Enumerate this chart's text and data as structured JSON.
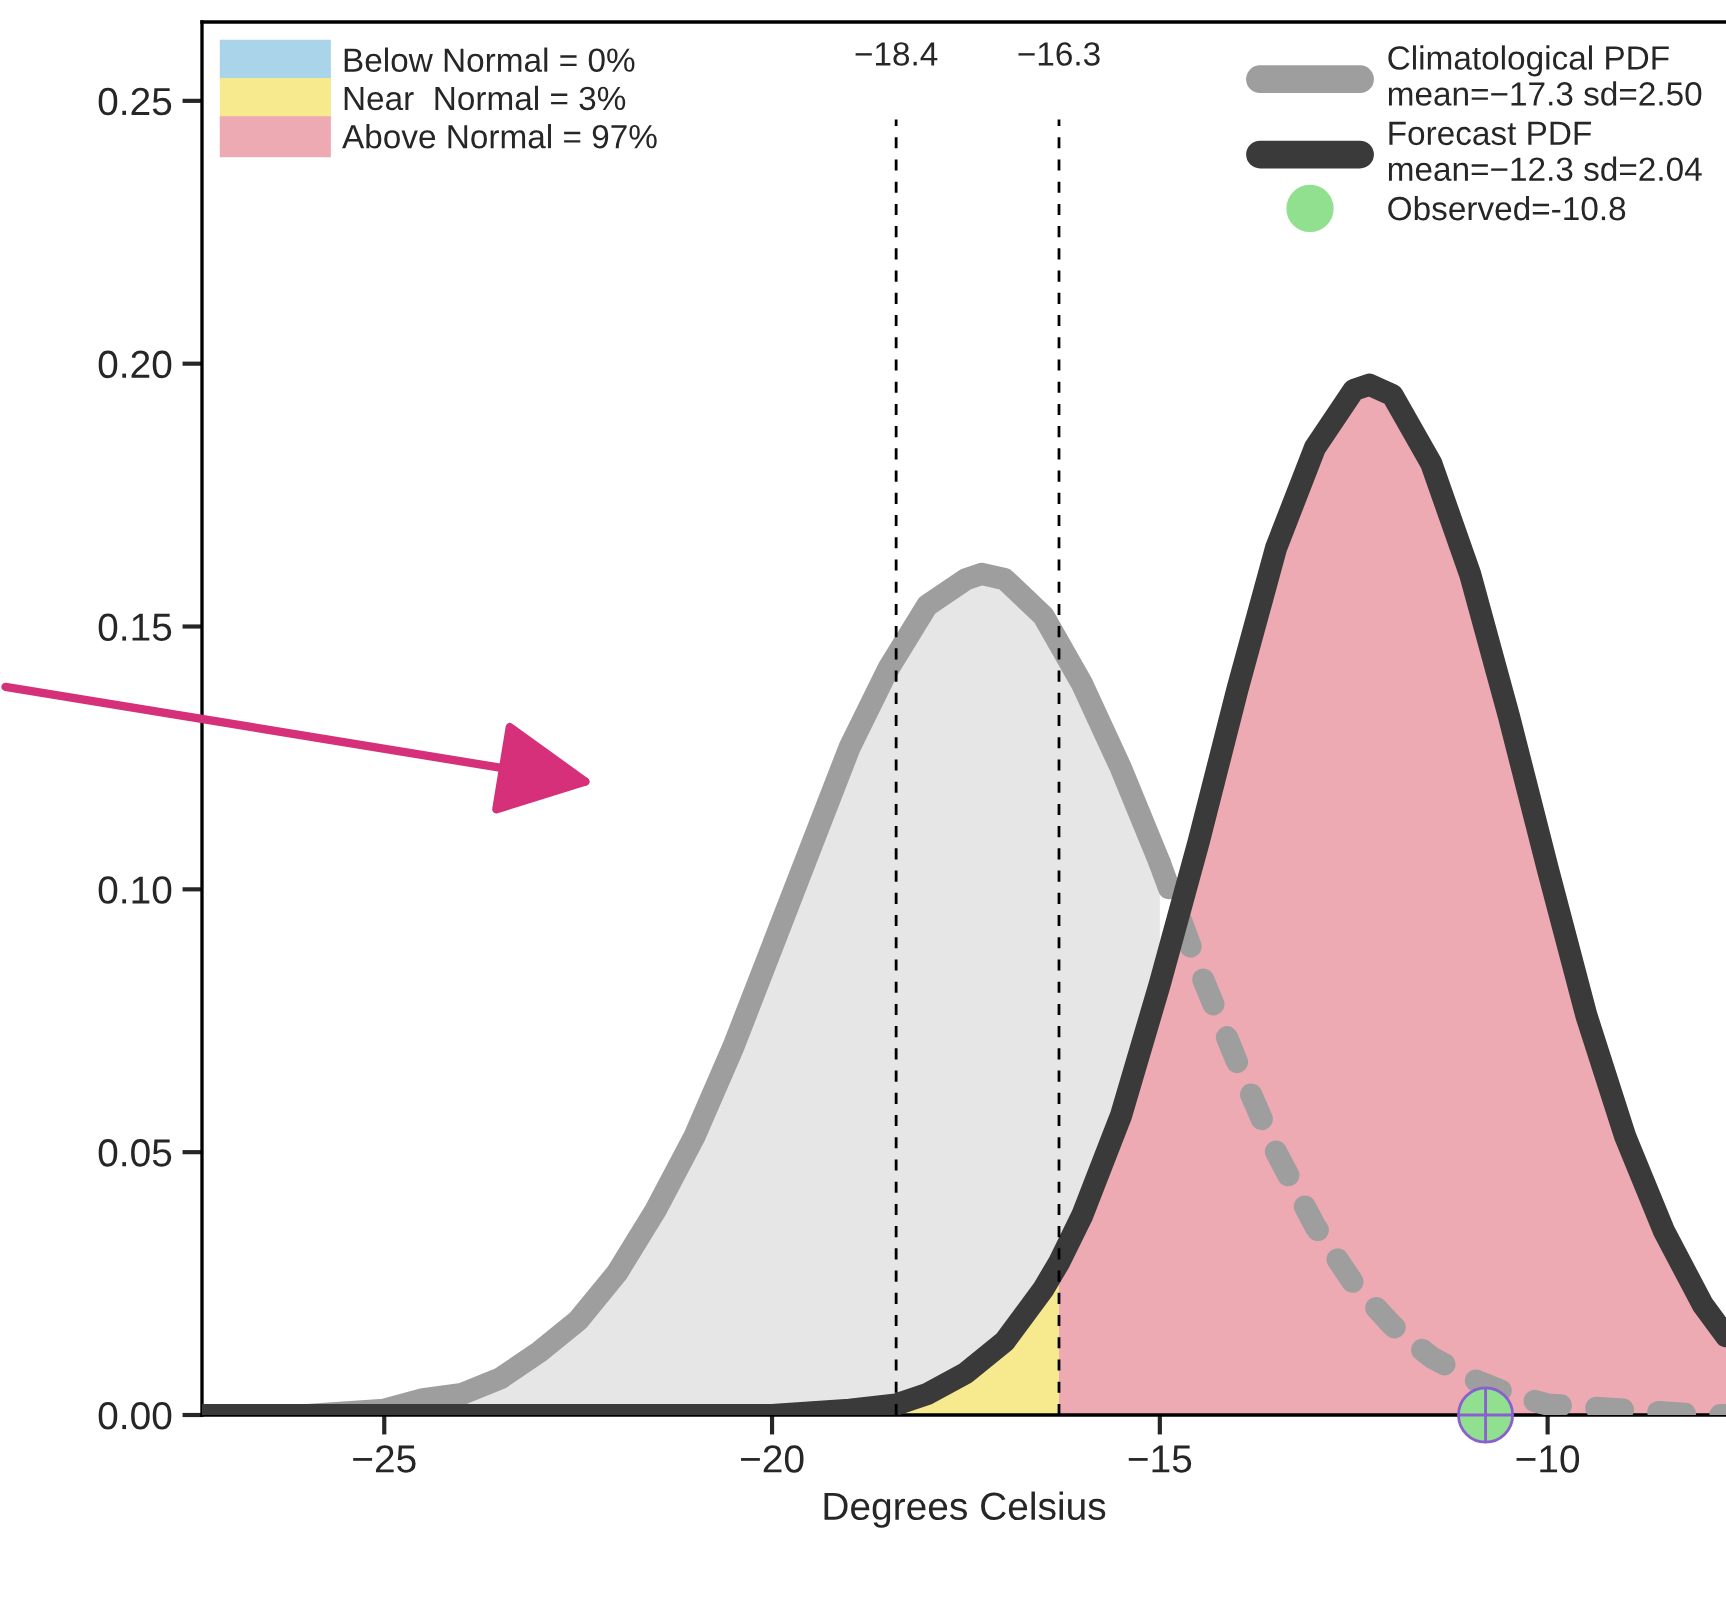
{
  "chart_data": {
    "type": "area",
    "xlabel": "Degrees Celsius",
    "xlim": [
      -27.35,
      -7.7
    ],
    "ylim": [
      0,
      0.265
    ],
    "xticks": [
      {
        "value": -25,
        "label": "−25"
      },
      {
        "value": -20,
        "label": "−20"
      },
      {
        "value": -15,
        "label": "−15"
      },
      {
        "value": -10,
        "label": "−10"
      }
    ],
    "yticks": [
      {
        "value": 0,
        "label": "0.00"
      },
      {
        "value": 0.05,
        "label": "0.05"
      },
      {
        "value": 0.1,
        "label": "0.10"
      },
      {
        "value": 0.15,
        "label": "0.15"
      },
      {
        "value": 0.2,
        "label": "0.20"
      },
      {
        "value": 0.25,
        "label": "0.25"
      }
    ],
    "grid": false,
    "legend": "top",
    "ref_lines": [
      {
        "axis": "x",
        "value": -18.4,
        "label": "−18.4",
        "color": "#000000",
        "line_style": "dashed"
      },
      {
        "axis": "x",
        "value": -16.3,
        "label": "−16.3",
        "color": "#000000",
        "line_style": "dashed"
      }
    ],
    "series": [
      {
        "type": "area",
        "name": "Climatological PDF\nmean=−17.3 sd=2.50",
        "color": "#9e9e9e",
        "line_style": "solid",
        "x": [
          -27.35,
          -27,
          -26,
          -25,
          -24.5,
          -24,
          -23.5,
          -23,
          -22.5,
          -22,
          -21.5,
          -21,
          -20.5,
          -20,
          -19.5,
          -19,
          -18.5,
          -18,
          -17.5,
          -17.3,
          -17,
          -16.5,
          -16,
          -15.5,
          -15
        ],
        "values": [
          0.0,
          0.0,
          0.0,
          0.001,
          0.003,
          0.004,
          0.007,
          0.012,
          0.018,
          0.027,
          0.039,
          0.053,
          0.07,
          0.089,
          0.108,
          0.127,
          0.142,
          0.154,
          0.159,
          0.16,
          0.159,
          0.152,
          0.139,
          0.123,
          0.105
        ]
      },
      {
        "name": "Below Normal = 0%",
        "color": "#a9d4ea",
        "values": [
          null
        ]
      },
      {
        "name": "Near  Normal = 3%",
        "color": "#f7e98e",
        "x": [
          -18.4,
          -18,
          -17.5,
          -17,
          -16.5,
          -16.3
        ],
        "values": [
          0.002,
          0.004,
          0.008,
          0.014,
          0.024,
          0.029
        ]
      },
      {
        "name": "Above Normal = 97%",
        "color": "#eeaab3",
        "x": [
          -16.3,
          -16,
          -15.5,
          -15,
          -14.5,
          -14,
          -13.5,
          -13,
          -12.5,
          -12.3,
          -12,
          -11.5,
          -11,
          -10.5,
          -10,
          -9.5,
          -9,
          -8.5,
          -8,
          -7.7
        ],
        "values": [
          0.029,
          0.038,
          0.057,
          0.082,
          0.109,
          0.138,
          0.165,
          0.184,
          0.195,
          0.196,
          0.194,
          0.181,
          0.16,
          0.133,
          0.104,
          0.076,
          0.053,
          0.035,
          0.021,
          0.015
        ]
      },
      {
        "type": "line",
        "color": "#9e9e9e",
        "line_style": "dashed",
        "x": [
          -15,
          -14.5,
          -14,
          -13.5,
          -13,
          -12.5,
          -12,
          -11.5,
          -11,
          -10.5,
          -10,
          -9,
          -8,
          -7.7
        ],
        "values": [
          0.105,
          0.085,
          0.067,
          0.05,
          0.036,
          0.025,
          0.017,
          0.011,
          0.007,
          0.004,
          0.002,
          0.001,
          0.0,
          0.0
        ]
      },
      {
        "type": "line",
        "name": "Forecast PDF\nmean=−12.3 sd=2.04",
        "color": "#3a3a3a",
        "line_style": "solid",
        "x": [
          -27.35,
          -20,
          -19,
          -18.4,
          -18,
          -17.5,
          -17,
          -16.5,
          -16.3,
          -16,
          -15.5,
          -15,
          -14.5,
          -14,
          -13.5,
          -13,
          -12.5,
          -12.3,
          -12,
          -11.5,
          -11,
          -10.5,
          -10,
          -9.5,
          -9,
          -8.5,
          -8,
          -7.7
        ],
        "values": [
          0.0,
          0.0,
          0.001,
          0.002,
          0.004,
          0.008,
          0.014,
          0.024,
          0.029,
          0.038,
          0.057,
          0.082,
          0.109,
          0.138,
          0.165,
          0.184,
          0.195,
          0.196,
          0.194,
          0.181,
          0.16,
          0.133,
          0.104,
          0.076,
          0.053,
          0.035,
          0.021,
          0.015
        ]
      },
      {
        "type": "scatter",
        "name": "Observed=-10.8",
        "color": "#90e090",
        "marker": "circle",
        "x": [
          -10.8
        ],
        "values": [
          0
        ]
      }
    ]
  }
}
